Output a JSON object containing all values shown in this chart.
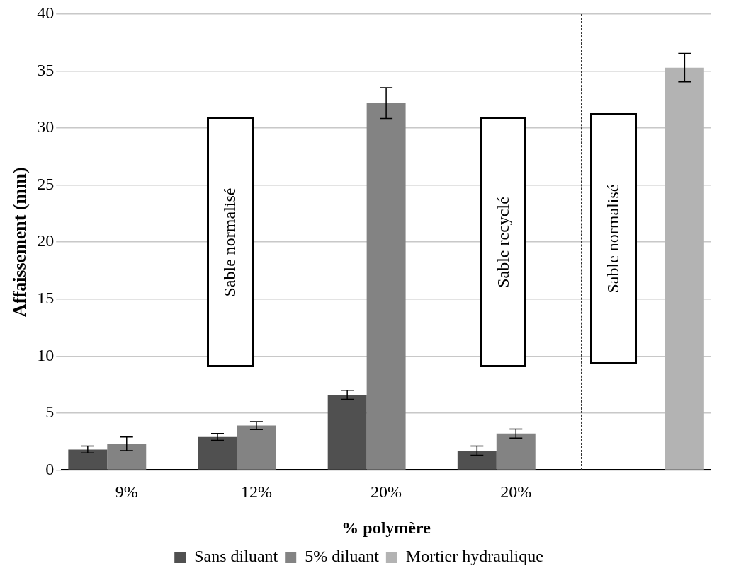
{
  "chart_data": {
    "type": "bar",
    "xlabel": "% polymère",
    "ylabel": "Affaissement (mm)",
    "categories": [
      "9%",
      "12%",
      "20%",
      "20%",
      null
    ],
    "series": [
      {
        "name": "Sans diluant",
        "color": "#505050",
        "values": [
          1.8,
          2.9,
          6.6,
          1.7,
          null
        ],
        "errors": [
          0.3,
          0.3,
          0.4,
          0.4,
          null
        ]
      },
      {
        "name": "5% diluant",
        "color": "#838383",
        "values": [
          2.3,
          3.9,
          32.2,
          3.2,
          null
        ],
        "errors": [
          0.6,
          0.35,
          1.35,
          0.4,
          null
        ]
      },
      {
        "name": "Mortier hydraulique",
        "color": "#b3b3b3",
        "values": [
          null,
          null,
          null,
          null,
          35.3
        ],
        "errors": [
          null,
          null,
          null,
          null,
          1.25
        ]
      }
    ],
    "ylim": [
      0,
      40
    ],
    "yticks": [
      0,
      5,
      10,
      15,
      20,
      25,
      30,
      35,
      40
    ],
    "grid": "y",
    "legend": "bottom",
    "annotations": [
      "Sable normalisé",
      "Sable recyclé",
      "Sable normalisé"
    ]
  }
}
